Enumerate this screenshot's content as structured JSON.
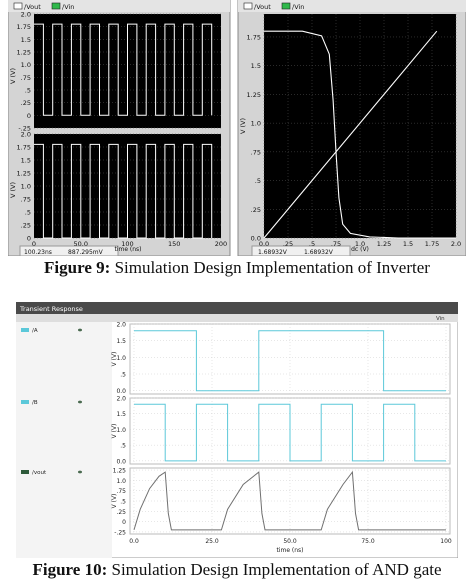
{
  "figure9": {
    "caption_label": "Figure 9:",
    "caption_text": " Simulation Design Implementation of Inverter",
    "left_panel": {
      "legend": [
        "/Vout",
        "/Vin"
      ],
      "ylabel": "V (V)",
      "top_yticks": [
        "2.0",
        "1.75",
        "1.5",
        "1.25",
        "1.0",
        ".75",
        ".5",
        ".25",
        "0",
        "-.25"
      ],
      "bottom_yticks": [
        "2.0",
        "1.75",
        "1.5",
        "1.25",
        "1.0",
        ".75",
        ".5",
        ".25",
        "0"
      ],
      "xticks": [
        "0",
        "50.0",
        "100",
        "150",
        "200"
      ],
      "xlabel": "time (ns)",
      "status_left": "100.23ns",
      "status_right": "887.295mV"
    },
    "right_panel": {
      "legend": [
        "/Vout",
        "/Vin"
      ],
      "ylabel": "V (V)",
      "yticks": [
        "1.75",
        "1.5",
        "1.25",
        "1.0",
        ".75",
        ".5",
        ".25",
        "0.0"
      ],
      "xticks": [
        "0.0",
        ".25",
        ".5",
        ".75",
        "1.0",
        "1.25",
        "1.5",
        "1.75",
        "2.0"
      ],
      "xlabel": "dc (V)",
      "status_left": "1.68932V",
      "status_right": "1.68932V"
    }
  },
  "figure10": {
    "caption_label": "Figure 10:",
    "caption_text": " Simulation Design Implementation of AND gate",
    "window_title": "Transient Response",
    "header_right": "Vin",
    "signals": [
      "/A",
      "/B",
      "/vout"
    ],
    "ylabel": "V (V)",
    "a_yticks": [
      "2.0",
      "1.5",
      "1.0",
      ".5",
      "0.0"
    ],
    "b_yticks": [
      "2.0",
      "1.5",
      "1.0",
      ".5",
      "0.0"
    ],
    "out_yticks": [
      "1.25",
      "1.0",
      ".75",
      ".5",
      ".25",
      "0",
      "-.25"
    ],
    "xticks": [
      "0.0",
      "25.0",
      "50.0",
      "75.0",
      "100"
    ],
    "xlabel": "time (ns)"
  },
  "chart_data": [
    {
      "type": "line",
      "id": "inverter-transient-input",
      "xlabel": "time (ns)",
      "ylabel": "V (V)",
      "xlim": [
        0,
        200
      ],
      "ylim": [
        -0.25,
        2.0
      ],
      "series": [
        {
          "name": "/Vin",
          "shape": "square-wave",
          "low": 0,
          "high": 1.8,
          "period": 20
        }
      ]
    },
    {
      "type": "line",
      "id": "inverter-transient-output",
      "xlabel": "time (ns)",
      "ylabel": "V (V)",
      "xlim": [
        0,
        200
      ],
      "ylim": [
        0,
        2.0
      ],
      "series": [
        {
          "name": "/Vout",
          "shape": "square-wave",
          "low": 0,
          "high": 1.8,
          "period": 20
        }
      ]
    },
    {
      "type": "line",
      "id": "inverter-dc-transfer",
      "xlabel": "dc (V)",
      "ylabel": "V (V)",
      "xlim": [
        0,
        2.0
      ],
      "ylim": [
        0,
        1.95
      ],
      "series": [
        {
          "name": "/Vout",
          "x": [
            0,
            0.4,
            0.6,
            0.68,
            0.72,
            0.75,
            0.78,
            0.82,
            0.9,
            1.1,
            1.4,
            2.0
          ],
          "y": [
            1.8,
            1.8,
            1.76,
            1.6,
            1.2,
            0.75,
            0.35,
            0.12,
            0.04,
            0.01,
            0.0,
            0.0
          ]
        },
        {
          "name": "/Vin",
          "x": [
            0,
            1.8
          ],
          "y": [
            0,
            1.8
          ]
        }
      ]
    },
    {
      "type": "line",
      "id": "and-gate-transient",
      "xlabel": "time (ns)",
      "ylabel": "V (V)",
      "xlim": [
        0,
        100
      ],
      "series": [
        {
          "name": "/A",
          "x": [
            0,
            20,
            20,
            40,
            40,
            80,
            80,
            100
          ],
          "y": [
            1.8,
            1.8,
            0,
            0,
            1.8,
            1.8,
            0,
            0
          ]
        },
        {
          "name": "/B",
          "x": [
            0,
            10,
            10,
            20,
            20,
            30,
            30,
            40,
            40,
            50,
            50,
            60,
            60,
            70,
            70,
            80,
            80,
            90,
            90,
            100
          ],
          "y": [
            1.8,
            1.8,
            0,
            0,
            1.8,
            1.8,
            0,
            0,
            1.8,
            1.8,
            0,
            0,
            1.8,
            1.8,
            0,
            0,
            1.8,
            1.8,
            0,
            0
          ]
        },
        {
          "name": "/vout",
          "x": [
            0,
            2,
            5,
            8,
            10,
            11,
            12,
            28,
            30,
            35,
            40,
            41,
            42,
            60,
            62,
            67,
            70,
            71,
            72,
            100
          ],
          "y": [
            -0.2,
            0.3,
            0.8,
            1.1,
            1.2,
            0.2,
            -0.2,
            -0.2,
            0.3,
            0.9,
            1.2,
            0.2,
            -0.2,
            -0.2,
            0.3,
            0.9,
            1.2,
            0.2,
            -0.2,
            -0.2
          ]
        }
      ]
    }
  ]
}
